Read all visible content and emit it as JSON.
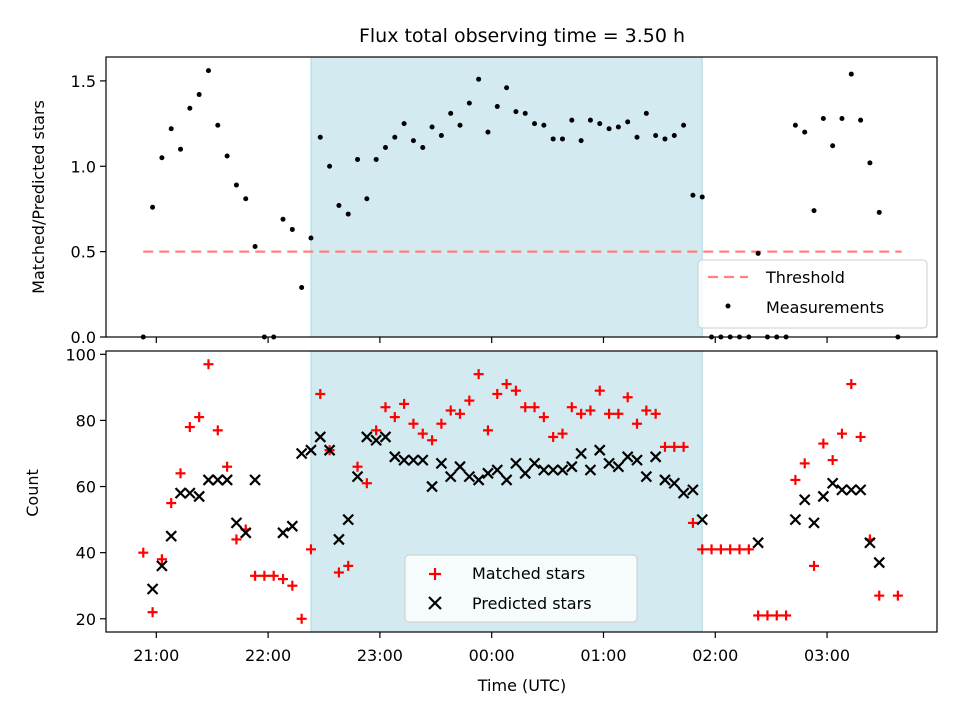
{
  "chart_data": [
    {
      "type": "scatter",
      "title": "Flux total observing time = 3.50 h",
      "ylabel": "Matched/Predicted stars",
      "xlabel": "",
      "xlim": [
        "20:33",
        "03:59"
      ],
      "ylim": [
        0,
        1.64
      ],
      "yticks": [
        0.0,
        0.5,
        1.0,
        1.5
      ],
      "ytick_labels": [
        "0.0",
        "0.5",
        "1.0",
        "1.5"
      ],
      "shaded_region": {
        "x_start": "22:23",
        "x_end": "01:53",
        "color": "#d3eaf1"
      },
      "legend_position": "lower-right",
      "threshold": {
        "name": "Threshold",
        "y": 0.5,
        "x_start": "20:53",
        "x_end": "03:40",
        "color": "#ff8080"
      },
      "series": [
        {
          "name": "Measurements",
          "color": "#000000",
          "marker": "dot",
          "x": [
            "20:53",
            "20:58",
            "21:03",
            "21:08",
            "21:13",
            "21:18",
            "21:23",
            "21:28",
            "21:33",
            "21:38",
            "21:43",
            "21:48",
            "21:53",
            "21:58",
            "22:03",
            "22:08",
            "22:13",
            "22:18",
            "22:23",
            "22:28",
            "22:33",
            "22:38",
            "22:43",
            "22:48",
            "22:53",
            "22:58",
            "23:03",
            "23:08",
            "23:13",
            "23:18",
            "23:23",
            "23:28",
            "23:33",
            "23:38",
            "23:43",
            "23:48",
            "23:53",
            "23:58",
            "00:03",
            "00:08",
            "00:13",
            "00:18",
            "00:23",
            "00:28",
            "00:33",
            "00:38",
            "00:43",
            "00:48",
            "00:53",
            "00:58",
            "01:03",
            "01:08",
            "01:13",
            "01:18",
            "01:23",
            "01:28",
            "01:33",
            "01:38",
            "01:43",
            "01:48",
            "01:53",
            "01:58",
            "02:03",
            "02:08",
            "02:13",
            "02:18",
            "02:23",
            "02:28",
            "02:33",
            "02:38",
            "02:43",
            "02:48",
            "02:53",
            "02:58",
            "03:03",
            "03:08",
            "03:13",
            "03:18",
            "03:23",
            "03:28",
            "03:38"
          ],
          "y": [
            0.0,
            0.76,
            1.05,
            1.22,
            1.1,
            1.34,
            1.42,
            1.56,
            1.24,
            1.06,
            0.89,
            0.81,
            0.53,
            0.0,
            0.0,
            0.69,
            0.63,
            0.29,
            0.58,
            1.17,
            1.0,
            0.77,
            0.72,
            1.04,
            0.81,
            1.04,
            1.11,
            1.17,
            1.25,
            1.15,
            1.11,
            1.23,
            1.18,
            1.31,
            1.24,
            1.37,
            1.51,
            1.2,
            1.35,
            1.46,
            1.32,
            1.31,
            1.25,
            1.24,
            1.16,
            1.16,
            1.27,
            1.15,
            1.27,
            1.25,
            1.22,
            1.23,
            1.26,
            1.17,
            1.31,
            1.18,
            1.16,
            1.18,
            1.24,
            0.83,
            0.82,
            0.0,
            0.0,
            0.0,
            0.0,
            0.0,
            0.49,
            0.0,
            0.0,
            0.0,
            1.24,
            1.2,
            0.74,
            1.28,
            1.12,
            1.28,
            1.54,
            1.27,
            1.02,
            0.73,
            0.0
          ]
        }
      ],
      "yaxis_label_text": "Matched/Predicted stars"
    },
    {
      "type": "scatter",
      "title": "",
      "ylabel": "Count",
      "xlabel": "Time (UTC)",
      "xlim": [
        "20:33",
        "03:59"
      ],
      "ylim": [
        16,
        101
      ],
      "yticks": [
        20,
        40,
        60,
        80,
        100
      ],
      "ytick_labels": [
        "20",
        "40",
        "60",
        "80",
        "100"
      ],
      "xticks": [
        "21:00",
        "22:00",
        "23:00",
        "00:00",
        "01:00",
        "02:00",
        "03:00"
      ],
      "xtick_labels": [
        "21:00",
        "22:00",
        "23:00",
        "00:00",
        "01:00",
        "02:00",
        "03:00"
      ],
      "shaded_region": {
        "x_start": "22:23",
        "x_end": "01:53",
        "color": "#d3eaf1"
      },
      "legend_position": "lower-center",
      "series": [
        {
          "name": "Matched stars",
          "color": "#ff0000",
          "marker": "plus",
          "x": [
            "20:53",
            "20:58",
            "21:03",
            "21:08",
            "21:13",
            "21:18",
            "21:23",
            "21:28",
            "21:33",
            "21:38",
            "21:43",
            "21:48",
            "21:53",
            "21:58",
            "22:03",
            "22:08",
            "22:13",
            "22:18",
            "22:23",
            "22:28",
            "22:33",
            "22:38",
            "22:43",
            "22:48",
            "22:53",
            "22:58",
            "23:03",
            "23:08",
            "23:13",
            "23:18",
            "23:23",
            "23:28",
            "23:33",
            "23:38",
            "23:43",
            "23:48",
            "23:53",
            "23:58",
            "00:03",
            "00:08",
            "00:13",
            "00:18",
            "00:23",
            "00:28",
            "00:33",
            "00:38",
            "00:43",
            "00:48",
            "00:53",
            "00:58",
            "01:03",
            "01:08",
            "01:13",
            "01:18",
            "01:23",
            "01:28",
            "01:33",
            "01:38",
            "01:43",
            "01:48",
            "01:53",
            "01:58",
            "02:03",
            "02:08",
            "02:13",
            "02:18",
            "02:23",
            "02:28",
            "02:33",
            "02:38",
            "02:43",
            "02:48",
            "02:53",
            "02:58",
            "03:03",
            "03:08",
            "03:13",
            "03:18",
            "03:23",
            "03:28",
            "03:38"
          ],
          "y": [
            40,
            22,
            38,
            55,
            64,
            78,
            81,
            97,
            77,
            66,
            44,
            47,
            33,
            33,
            33,
            32,
            30,
            20,
            41,
            88,
            71,
            34,
            36,
            66,
            61,
            77,
            84,
            81,
            85,
            79,
            76,
            74,
            79,
            83,
            82,
            86,
            94,
            77,
            88,
            91,
            89,
            84,
            84,
            81,
            75,
            76,
            84,
            82,
            83,
            89,
            82,
            82,
            87,
            79,
            83,
            82,
            72,
            72,
            72,
            49,
            41,
            41,
            41,
            41,
            41,
            41,
            21,
            21,
            21,
            21,
            62,
            67,
            36,
            73,
            68,
            76,
            91,
            75,
            44,
            27,
            27
          ]
        },
        {
          "name": "Predicted stars",
          "color": "#000000",
          "marker": "x",
          "x": [
            "20:58",
            "21:03",
            "21:08",
            "21:13",
            "21:18",
            "21:23",
            "21:28",
            "21:33",
            "21:38",
            "21:43",
            "21:48",
            "21:53",
            "22:08",
            "22:13",
            "22:18",
            "22:23",
            "22:28",
            "22:33",
            "22:38",
            "22:43",
            "22:48",
            "22:53",
            "22:58",
            "23:03",
            "23:08",
            "23:13",
            "23:18",
            "23:23",
            "23:28",
            "23:33",
            "23:38",
            "23:43",
            "23:48",
            "23:53",
            "23:58",
            "00:03",
            "00:08",
            "00:13",
            "00:18",
            "00:23",
            "00:28",
            "00:33",
            "00:38",
            "00:43",
            "00:48",
            "00:53",
            "00:58",
            "01:03",
            "01:08",
            "01:13",
            "01:18",
            "01:23",
            "01:28",
            "01:33",
            "01:38",
            "01:43",
            "01:48",
            "01:53",
            "02:23",
            "02:43",
            "02:48",
            "02:53",
            "02:58",
            "03:03",
            "03:08",
            "03:13",
            "03:18",
            "03:23",
            "03:28"
          ],
          "y": [
            29,
            36,
            45,
            58,
            58,
            57,
            62,
            62,
            62,
            49,
            46,
            62,
            46,
            48,
            70,
            71,
            75,
            71,
            44,
            50,
            63,
            75,
            74,
            75,
            69,
            68,
            68,
            68,
            60,
            67,
            63,
            66,
            63,
            62,
            64,
            65,
            62,
            67,
            64,
            67,
            65,
            65,
            65,
            66,
            70,
            65,
            71,
            67,
            66,
            69,
            68,
            63,
            69,
            62,
            61,
            58,
            59,
            50,
            43,
            50,
            56,
            49,
            57,
            61,
            59,
            59,
            59,
            43,
            37
          ]
        }
      ]
    }
  ]
}
